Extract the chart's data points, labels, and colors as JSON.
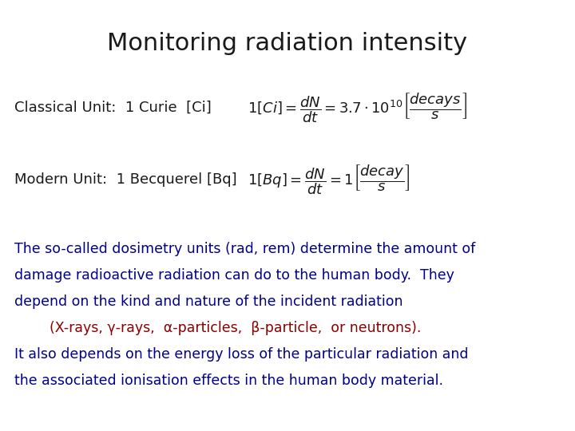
{
  "title": "Monitoring radiation intensity",
  "title_fontsize": 22,
  "title_color": "#1a1a1a",
  "background_color": "#ffffff",
  "classical_label": "Classical Unit:  1 Curie  [Ci]",
  "modern_label": "Modern Unit:  1 Becquerel [Bq]",
  "label_fontsize": 13,
  "formula_fontsize": 13,
  "body_text_1": "The so-called dosimetry units (rad, rem) determine the amount of",
  "body_text_2": "damage radioactive radiation can do to the human body.  They",
  "body_text_3": "depend on the kind and nature of the incident radiation",
  "body_text_4": "        (X-rays, γ-rays,  α-particles,  β-particle,  or neutrons).",
  "body_text_5": "It also depends on the energy loss of the particular radiation and",
  "body_text_6": "the associated ionisation effects in the human body material.",
  "body_fontsize": 12.5,
  "body_color": "#00008B",
  "highlight_color": "#8B0000",
  "label_color": "#1a1a1a"
}
